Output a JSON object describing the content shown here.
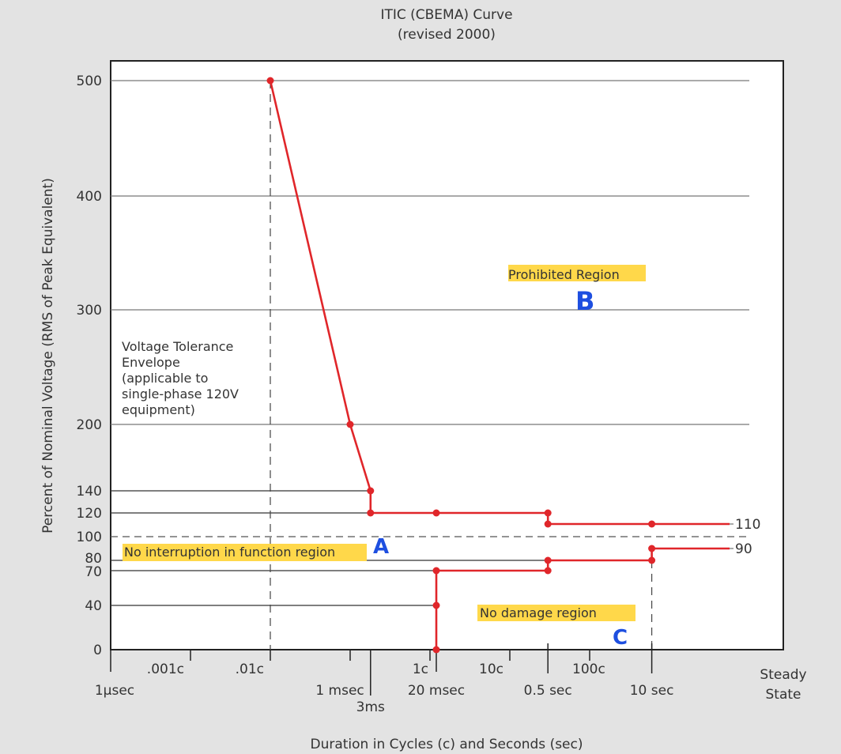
{
  "chart_data": {
    "type": "line",
    "title": "ITIC (CBEMA) Curve",
    "subtitle": "(revised 2000)",
    "xlabel": "Duration in Cycles (c) and Seconds (sec)",
    "ylabel": "Percent of Nominal Voltage (RMS of Peak Equivalent)",
    "x_scale": "log",
    "x_unit": "cycles",
    "xlim": [
      0.0001,
      10000
    ],
    "y_ticks": [
      {
        "value": 0,
        "label": "0"
      },
      {
        "value": 40,
        "label": "40"
      },
      {
        "value": 70,
        "label": "70"
      },
      {
        "value": 80,
        "label": "80"
      },
      {
        "value": 100,
        "label": "100"
      },
      {
        "value": 120,
        "label": "120"
      },
      {
        "value": 140,
        "label": "140"
      },
      {
        "value": 200,
        "label": "200"
      },
      {
        "value": 300,
        "label": "300"
      },
      {
        "value": 400,
        "label": "400"
      },
      {
        "value": 500,
        "label": "500"
      }
    ],
    "x_ticks_top": [
      {
        "x": 0.001,
        "label": ".001c"
      },
      {
        "x": 0.01,
        "label": ".01c"
      },
      {
        "x": 1,
        "label": "1c"
      },
      {
        "x": 10,
        "label": "10c"
      },
      {
        "x": 100,
        "label": "100c"
      }
    ],
    "x_ticks_bottom": [
      {
        "x": 0.0001,
        "label": "1µsec"
      },
      {
        "x": 0.06,
        "label": "1 msec"
      },
      {
        "x": 0.18,
        "label": "3ms"
      },
      {
        "x": 1.2,
        "label": "20 msec"
      },
      {
        "x": 30,
        "label": "0.5 sec"
      },
      {
        "x": 600,
        "label": "10 sec"
      },
      {
        "x": 10000,
        "label": "Steady State"
      }
    ],
    "x_minor_ticks": [
      0.1,
      30,
      600
    ],
    "upper_curve": {
      "name": "Prohibited boundary",
      "points": [
        [
          0.01,
          500
        ],
        [
          0.1,
          200
        ],
        [
          0.18,
          140
        ],
        [
          0.18,
          120
        ],
        [
          1.2,
          120
        ],
        [
          30,
          120
        ],
        [
          30,
          110
        ],
        [
          600,
          110
        ],
        [
          3000,
          110
        ]
      ]
    },
    "lower_curve": {
      "name": "No damage boundary",
      "points": [
        [
          1.2,
          0
        ],
        [
          1.2,
          40
        ],
        [
          1.2,
          70
        ],
        [
          30,
          70
        ],
        [
          30,
          80
        ],
        [
          600,
          80
        ],
        [
          600,
          90
        ],
        [
          3000,
          90
        ]
      ]
    },
    "markers": [
      [
        0.01,
        500
      ],
      [
        0.1,
        200
      ],
      [
        0.18,
        140
      ],
      [
        0.18,
        120
      ],
      [
        1.2,
        120
      ],
      [
        30,
        120
      ],
      [
        30,
        110
      ],
      [
        600,
        110
      ],
      [
        1.2,
        0
      ],
      [
        1.2,
        40
      ],
      [
        1.2,
        70
      ],
      [
        30,
        70
      ],
      [
        30,
        80
      ],
      [
        600,
        80
      ],
      [
        600,
        90
      ]
    ],
    "end_labels": [
      {
        "y": 110,
        "label": "110"
      },
      {
        "y": 90,
        "label": "90"
      }
    ],
    "gridlines": [
      200,
      300,
      400,
      500
    ],
    "ref_lines_to_3ms": [
      120,
      140
    ],
    "ref_lines_to_20ms": [
      40,
      70,
      80
    ],
    "nominal_dashed": 100
  },
  "annotations": {
    "envelope_text": [
      "Voltage Tolerance",
      "Envelope",
      "(applicable to",
      "single-phase 120V",
      "equipment)"
    ],
    "prohibited_region": "Prohibited Region",
    "no_interruption_region": "No interruption in function region",
    "no_damage_region": "No damage region",
    "mark_a": "A",
    "mark_b": "B",
    "mark_c": "C"
  },
  "colors": {
    "curve": "#e0262a",
    "grid": "#777777",
    "highlight": "#ffd84a",
    "handwriting": "#1e4fe0"
  }
}
